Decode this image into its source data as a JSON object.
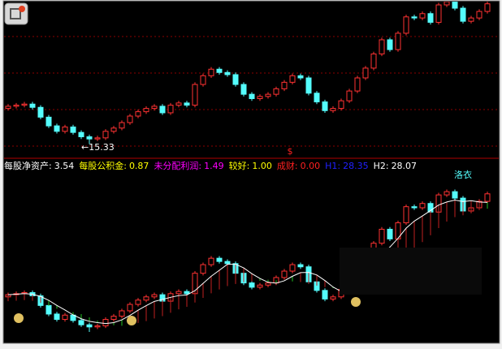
{
  "chart_data": {
    "type": "candlestick",
    "annotation": "←15.33",
    "marker": "$",
    "tag": "洛衣",
    "indicators": [
      {
        "label": "每股净资产:",
        "value": 3.54,
        "color": "#ffffff"
      },
      {
        "label": "每股公积金:",
        "value": 0.87,
        "color": "#ffff00"
      },
      {
        "label": "未分配利润:",
        "value": 1.49,
        "color": "#ff00ff"
      },
      {
        "label": "较好:",
        "value": 1.0,
        "color": "#ffff00"
      },
      {
        "label": "成财:",
        "value": 0.0,
        "color": "#ff2020"
      },
      {
        "label": "H1:",
        "value": 28.35,
        "color": "#2020ff"
      },
      {
        "label": "H2:",
        "value": 28.07,
        "color": "#ffffff"
      }
    ],
    "up_color": "#ff3232",
    "down_color": "#54fcfc",
    "ylim": [
      14.4,
      28.4
    ],
    "y2lim": [
      14.5,
      30
    ],
    "open": [
      18.6,
      18.8,
      18.9,
      19.0,
      18.7,
      17.8,
      17.0,
      16.5,
      16.9,
      16.4,
      16.0,
      15.8,
      15.9,
      16.5,
      16.8,
      17.3,
      17.9,
      18.3,
      18.6,
      18.8,
      18.2,
      18.9,
      19.1,
      18.9,
      20.8,
      21.6,
      22.2,
      21.9,
      21.7,
      20.8,
      19.9,
      19.5,
      19.7,
      19.9,
      20.4,
      21.0,
      21.6,
      21.4,
      20.0,
      19.2,
      18.4,
      18.6,
      19.3,
      20.2,
      21.4,
      22.3,
      23.6,
      24.9,
      24.0,
      25.5,
      27.0,
      26.9,
      27.3,
      26.5,
      28.1,
      28.4,
      27.8,
      26.6,
      26.9,
      27.5
    ],
    "high": [
      19.0,
      19.1,
      19.2,
      19.2,
      18.9,
      18.0,
      17.2,
      17.1,
      17.1,
      16.6,
      16.2,
      16.1,
      16.7,
      17.0,
      17.5,
      18.1,
      18.5,
      18.8,
      19.0,
      19.0,
      19.1,
      19.3,
      19.3,
      21.0,
      21.8,
      22.4,
      22.4,
      22.1,
      21.9,
      21.0,
      20.1,
      19.9,
      20.1,
      20.6,
      21.2,
      21.8,
      21.8,
      21.6,
      20.2,
      19.4,
      18.8,
      19.5,
      20.4,
      21.6,
      22.5,
      23.8,
      25.1,
      25.1,
      25.7,
      27.2,
      27.2,
      27.5,
      27.5,
      28.3,
      28.6,
      28.6,
      28.0,
      27.1,
      27.7,
      28.4
    ],
    "low": [
      18.4,
      18.6,
      18.7,
      18.5,
      17.6,
      16.8,
      16.3,
      16.3,
      16.2,
      15.8,
      15.33,
      15.6,
      15.7,
      16.3,
      16.6,
      17.1,
      17.7,
      18.1,
      18.4,
      18.0,
      18.0,
      18.7,
      18.7,
      18.7,
      20.6,
      21.4,
      21.7,
      21.5,
      20.6,
      19.7,
      19.3,
      19.3,
      19.5,
      19.7,
      20.2,
      20.8,
      21.2,
      19.8,
      19.0,
      18.2,
      18.2,
      18.4,
      19.1,
      20.0,
      21.2,
      22.1,
      23.4,
      23.8,
      23.8,
      25.3,
      26.7,
      26.7,
      26.3,
      26.3,
      27.9,
      27.6,
      26.4,
      26.4,
      26.7,
      27.3
    ],
    "close": [
      18.8,
      18.9,
      19.0,
      18.7,
      17.8,
      17.0,
      16.5,
      16.9,
      16.4,
      16.0,
      15.8,
      15.9,
      16.5,
      16.8,
      17.3,
      17.9,
      18.3,
      18.6,
      18.8,
      18.2,
      18.9,
      19.1,
      18.9,
      20.8,
      21.6,
      22.2,
      21.9,
      21.7,
      20.8,
      19.9,
      19.5,
      19.7,
      19.9,
      20.4,
      21.0,
      21.6,
      21.4,
      20.0,
      19.2,
      18.4,
      18.6,
      19.3,
      20.2,
      21.4,
      22.3,
      23.6,
      24.9,
      24.0,
      25.5,
      27.0,
      26.9,
      27.3,
      26.5,
      28.1,
      28.4,
      27.8,
      26.6,
      26.9,
      27.5,
      28.2
    ]
  }
}
